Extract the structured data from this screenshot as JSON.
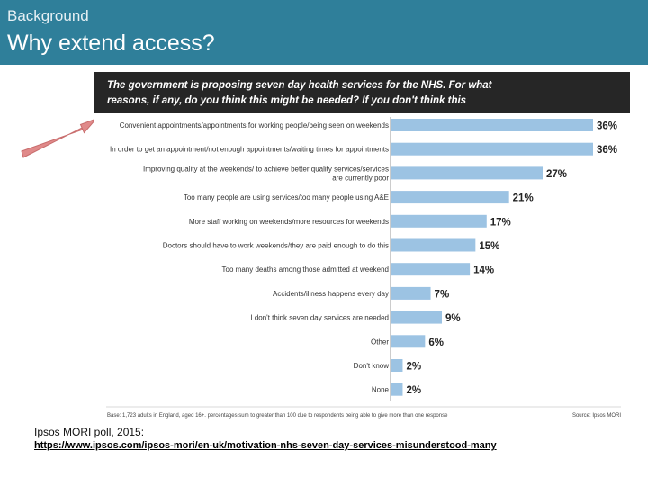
{
  "header": {
    "kicker": "Background",
    "title": "Why extend access?"
  },
  "chart_data": {
    "type": "bar",
    "orientation": "horizontal",
    "title": "The government is proposing seven day health services for the NHS. For what reasons, if any, do you think this might be needed? If you don't think this needed, please say so (unprompted)",
    "categories": [
      "Convenient appointments/appointments for working people/being seen on weekends",
      "In order to get an appointment/not enough appointments/waiting times for appointments",
      "Improving quality at the weekends/ to achieve better quality services/services are currently poor",
      "Too many people are using services/too many people using A&E",
      "More staff working on weekends/more resources for weekends",
      "Doctors should have to work weekends/they are paid enough to do this",
      "Too many deaths among those admitted at weekend",
      "Accidents/illness happens every day",
      "I don't think seven day services are needed",
      "Other",
      "Don't know",
      "None"
    ],
    "values": [
      36,
      36,
      27,
      21,
      17,
      15,
      14,
      7,
      9,
      6,
      2,
      2
    ],
    "value_labels": [
      "36%",
      "36%",
      "27%",
      "21%",
      "17%",
      "15%",
      "14%",
      "7%",
      "9%",
      "6%",
      "2%",
      "2%"
    ],
    "xlim": [
      0,
      36
    ],
    "bar_color": "#9cc3e3",
    "title_background": "#262626",
    "grid": false,
    "footnote": "Base: 1,723 adults in England, aged 16+. percentages sum to greater than 100 due to respondents being able to give more than one response",
    "source_note": "Source: Ipsos MORI"
  },
  "source": {
    "label": "Ipsos MORI poll, 2015:",
    "url": "https://www.ipsos.com/ipsos-mori/en-uk/motivation-nhs-seven-day-services-misunderstood-many"
  },
  "colors": {
    "header": "#2f7f9a",
    "arrow": "#e08a8a"
  }
}
